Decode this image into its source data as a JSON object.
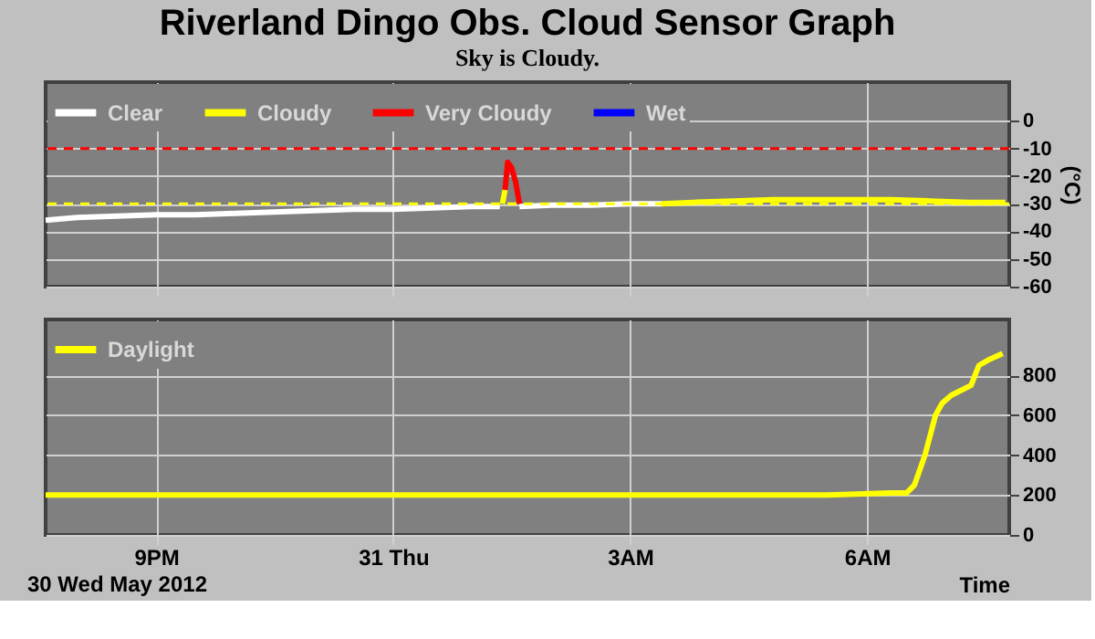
{
  "chart_data": [
    {
      "type": "line",
      "title": "Riverland Dingo Obs. Cloud Sensor Graph",
      "subtitle": "Sky is Cloudy.",
      "ylabel": "(°C)",
      "xlim": [
        "2012-05-30T19:36",
        "2012-05-31T07:48"
      ],
      "ylim": [
        -60,
        14
      ],
      "xticks": [
        "2012-05-30T21:00",
        "2012-05-31T00:00",
        "2012-05-31T03:00",
        "2012-05-31T06:00"
      ],
      "yticks": [
        0,
        -10,
        -20,
        -30,
        -40,
        -50,
        -60
      ],
      "tick_labels": "y",
      "grid": true,
      "legend": "top left",
      "line_style": "solid",
      "marker": "none",
      "ref_lines": [
        {
          "axis": "y",
          "value": -10,
          "color": "#ff0000",
          "line_style": "dashed"
        },
        {
          "axis": "y",
          "value": -30,
          "color": "#ffff00",
          "line_style": "dashed"
        }
      ],
      "series": [
        {
          "name": "Clear",
          "color": "#ffffff",
          "x": [
            "2012-05-30T19:36",
            "2012-05-30T20:00",
            "2012-05-30T20:30",
            "2012-05-30T21:00",
            "2012-05-30T21:30",
            "2012-05-30T22:00",
            "2012-05-30T22:30",
            "2012-05-30T23:00",
            "2012-05-30T23:30",
            "2012-05-31T00:00",
            "2012-05-31T00:30",
            "2012-05-31T01:00",
            "2012-05-31T01:21",
            "2012-05-31T01:24",
            "2012-05-31T01:36",
            "2012-05-31T02:00",
            "2012-05-31T02:30",
            "2012-05-31T03:00",
            "2012-05-31T03:24"
          ],
          "values": [
            -36,
            -35,
            -34.5,
            -34,
            -34,
            -33.5,
            -33,
            -32.5,
            -32,
            -32,
            -31.5,
            -31,
            -31,
            null,
            -31,
            -30.5,
            -30.5,
            -30,
            -30
          ]
        },
        {
          "name": "Cloudy",
          "color": "#ffff00",
          "x": [
            "2012-05-31T01:23",
            "2012-05-31T01:25",
            "2012-05-31T02:00",
            "2012-05-31T03:24",
            "2012-05-31T03:48",
            "2012-05-31T04:18",
            "2012-05-31T04:48",
            "2012-05-31T05:18",
            "2012-05-31T05:48",
            "2012-05-31T06:18",
            "2012-05-31T06:48",
            "2012-05-31T07:18",
            "2012-05-31T07:45"
          ],
          "values": [
            -30,
            -25,
            null,
            -30,
            -29.5,
            -29,
            -28.5,
            -28.5,
            -28.5,
            -28.5,
            -29,
            -29.5,
            -29.5
          ]
        },
        {
          "name": "Very Cloudy",
          "color": "#ff0000",
          "x": [
            "2012-05-31T01:25",
            "2012-05-31T01:27",
            "2012-05-31T01:30",
            "2012-05-31T01:33",
            "2012-05-31T01:36"
          ],
          "values": [
            -25,
            -15,
            -17,
            -22,
            -30
          ]
        },
        {
          "name": "Wet",
          "color": "#0000ff"
        }
      ]
    },
    {
      "type": "line",
      "xlabel": "Time",
      "annotations": [
        "30 Wed May 2012"
      ],
      "xlim": [
        "2012-05-30T19:36",
        "2012-05-31T07:48"
      ],
      "ylim": [
        0,
        1080
      ],
      "xticks": [
        {
          "value": "2012-05-30T21:00",
          "label": "9PM"
        },
        {
          "value": "2012-05-31T00:00",
          "label": "31 Thu"
        },
        {
          "value": "2012-05-31T03:00",
          "label": "3AM"
        },
        {
          "value": "2012-05-31T06:00",
          "label": "6AM"
        }
      ],
      "yticks": [
        0,
        200,
        400,
        600,
        800
      ],
      "grid": true,
      "legend": "top left",
      "line_style": "solid",
      "marker": "none",
      "series": [
        {
          "name": "Daylight",
          "color": "#ffff00",
          "x": [
            "2012-05-30T19:36",
            "2012-05-30T20:30",
            "2012-05-30T21:30",
            "2012-05-30T22:30",
            "2012-05-30T23:30",
            "2012-05-31T00:30",
            "2012-05-31T01:30",
            "2012-05-31T02:30",
            "2012-05-31T03:30",
            "2012-05-31T04:30",
            "2012-05-31T05:30",
            "2012-05-31T06:18",
            "2012-05-31T06:30",
            "2012-05-31T06:36",
            "2012-05-31T06:44",
            "2012-05-31T06:52",
            "2012-05-31T06:57",
            "2012-05-31T07:04",
            "2012-05-31T07:19",
            "2012-05-31T07:22",
            "2012-05-31T07:25",
            "2012-05-31T07:33",
            "2012-05-31T07:43"
          ],
          "values": [
            200,
            200,
            200,
            200,
            200,
            200,
            200,
            200,
            200,
            200,
            200,
            210,
            210,
            250,
            400,
            600,
            660,
            700,
            750,
            800,
            850,
            880,
            910
          ]
        }
      ]
    }
  ]
}
